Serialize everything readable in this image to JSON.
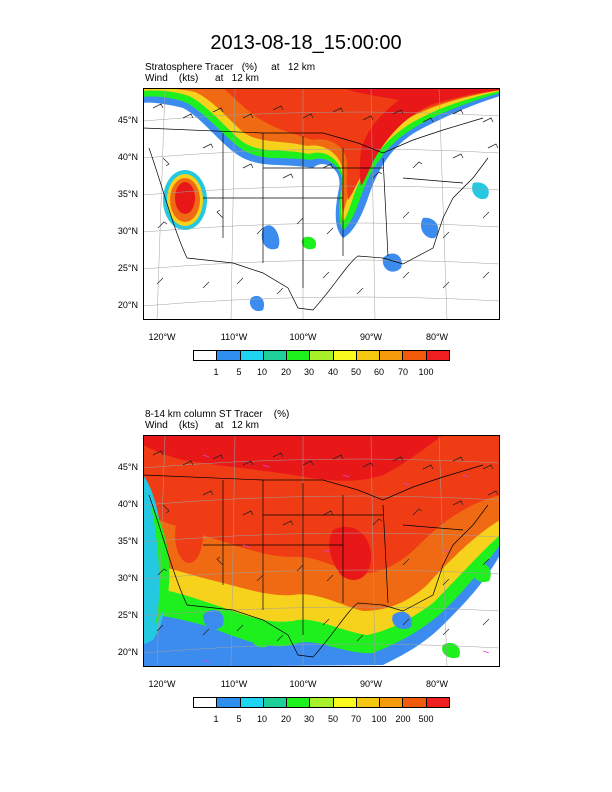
{
  "title": "2013-08-18_15:00:00",
  "panels": [
    {
      "title_line1": "Stratosphere Tracer   (%)     at   12 km",
      "title_line2": "Wind    (kts)      at   12 km",
      "lat_labels": [
        "45°N",
        "40°N",
        "35°N",
        "30°N",
        "25°N",
        "20°N"
      ],
      "lon_labels": [
        "120°W",
        "110°W",
        "100°W",
        "90°W",
        "80°W"
      ],
      "colorbar_labels": [
        "1",
        "5",
        "10",
        "20",
        "30",
        "40",
        "50",
        "60",
        "70",
        "100"
      ]
    },
    {
      "title_line1": "8-14 km column ST Tracer    (%)",
      "title_line2": "Wind    (kts)      at   12 km",
      "lat_labels": [
        "45°N",
        "40°N",
        "35°N",
        "30°N",
        "25°N",
        "20°N"
      ],
      "lon_labels": [
        "120°W",
        "110°W",
        "100°W",
        "90°W",
        "80°W"
      ],
      "colorbar_labels": [
        "1",
        "5",
        "10",
        "20",
        "30",
        "50",
        "70",
        "100",
        "200",
        "500"
      ]
    }
  ],
  "colorbar_colors": [
    "#ffffff",
    "#2f8fef",
    "#1ed4f0",
    "#1ecf9a",
    "#1ef01e",
    "#a7f02a",
    "#fafa1e",
    "#f5c80f",
    "#f59a0a",
    "#f05a0a",
    "#f01e1e"
  ],
  "field_colors": {
    "strong": "#f03c14",
    "peak": "#e81818",
    "orange": "#f06a14",
    "yellow": "#f7d21c",
    "green": "#3cd85a",
    "cyan": "#24c8e0",
    "blue": "#3c8cf0",
    "boundary": "#000000",
    "barb": "#222222",
    "grid": "#a0a0a0"
  }
}
